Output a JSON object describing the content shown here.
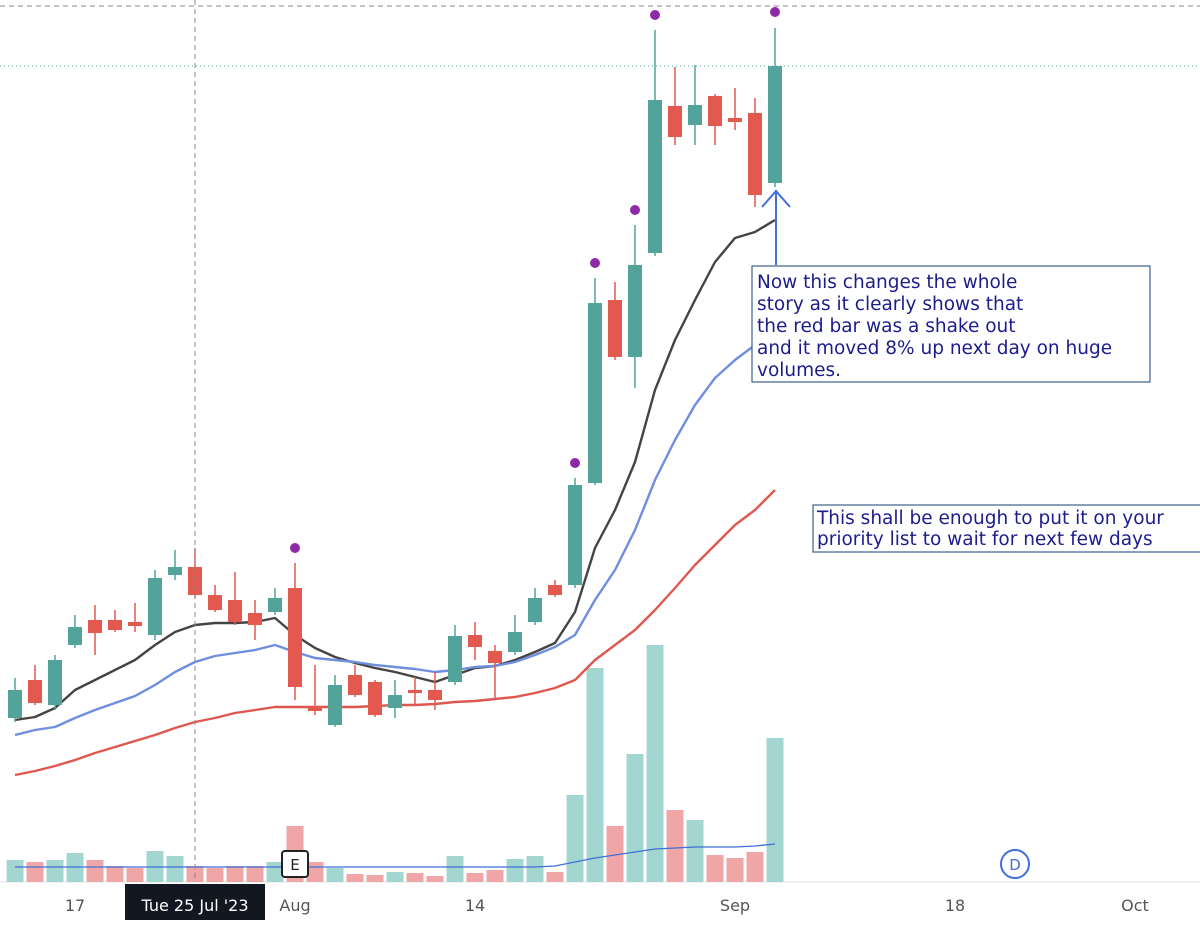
{
  "chart_data": {
    "type": "candlestick",
    "x": [
      0,
      1,
      2,
      3,
      4,
      5,
      6,
      7,
      8,
      9,
      10,
      11,
      12,
      13,
      14,
      15,
      16,
      17,
      18,
      19,
      20,
      21,
      22,
      23,
      24,
      25,
      26,
      27,
      28,
      29,
      30,
      31,
      32,
      33,
      34,
      35,
      36,
      37,
      38
    ],
    "open": [
      162,
      200,
      175,
      235,
      260,
      260,
      258,
      245,
      305,
      313,
      285,
      280,
      267,
      268,
      292,
      173,
      155,
      205,
      198,
      172,
      190,
      190,
      198,
      245,
      229,
      228,
      258,
      295,
      295,
      397,
      580,
      523,
      627,
      774,
      755,
      784,
      762,
      767,
      697
    ],
    "high": [
      202,
      215,
      225,
      265,
      275,
      270,
      277,
      310,
      330,
      332,
      295,
      308,
      280,
      292,
      317,
      215,
      205,
      215,
      200,
      200,
      203,
      208,
      255,
      258,
      235,
      265,
      292,
      300,
      402,
      602,
      598,
      655,
      850,
      813,
      815,
      786,
      792,
      782,
      852
    ],
    "low": [
      158,
      175,
      170,
      232,
      225,
      248,
      248,
      240,
      300,
      282,
      268,
      255,
      240,
      265,
      180,
      165,
      153,
      183,
      163,
      162,
      175,
      170,
      195,
      220,
      182,
      225,
      255,
      283,
      292,
      395,
      520,
      492,
      624,
      735,
      735,
      735,
      750,
      673,
      693
    ],
    "close": [
      190,
      177,
      220,
      253,
      247,
      250,
      254,
      302,
      313,
      285,
      270,
      258,
      255,
      282,
      193,
      169,
      195,
      185,
      165,
      185,
      187,
      180,
      244,
      233,
      217,
      248,
      282,
      285,
      395,
      577,
      523,
      615,
      780,
      743,
      775,
      754,
      758,
      685,
      814
    ],
    "up_color": "#52a49a",
    "down_color": "#e3584f",
    "ylim": [
      0,
      880
    ],
    "xlim": [
      -0.75,
      59.25
    ],
    "xticks": [
      {
        "value": 3,
        "label": "17"
      },
      {
        "value": 14,
        "label": "Aug"
      },
      {
        "value": 23,
        "label": "14"
      },
      {
        "value": 36,
        "label": "Sep"
      },
      {
        "value": 47,
        "label": "18"
      },
      {
        "value": 56,
        "label": "Oct"
      }
    ],
    "series": [
      {
        "name": null,
        "color": "#444444",
        "values": [
          160,
          163,
          172,
          190,
          200,
          210,
          220,
          235,
          248,
          255,
          257,
          257,
          258,
          262,
          245,
          232,
          223,
          217,
          212,
          208,
          203,
          198,
          205,
          212,
          214,
          220,
          228,
          237,
          268,
          332,
          370,
          418,
          490,
          540,
          580,
          618,
          642,
          648,
          660
        ]
      },
      {
        "name": null,
        "color": "#6e8ee0",
        "values": [
          145,
          150,
          153,
          162,
          170,
          177,
          184,
          195,
          208,
          218,
          224,
          227,
          230,
          235,
          228,
          222,
          220,
          218,
          215,
          213,
          211,
          208,
          210,
          213,
          214,
          218,
          225,
          233,
          245,
          280,
          310,
          350,
          400,
          440,
          475,
          502,
          520,
          535,
          540
        ]
      },
      {
        "name": null,
        "color": "#e0574f",
        "values": [
          105,
          109,
          114,
          120,
          127,
          133,
          139,
          145,
          152,
          158,
          162,
          167,
          170,
          173,
          173,
          173,
          173,
          173,
          174,
          175,
          175,
          176,
          178,
          179,
          181,
          183,
          187,
          192,
          200,
          220,
          235,
          250,
          270,
          292,
          315,
          335,
          355,
          370,
          390
        ]
      }
    ],
    "volume": {
      "values": [
        22,
        20,
        22,
        29,
        22,
        16,
        14,
        31,
        26,
        16,
        14,
        16,
        16,
        20,
        56,
        20,
        14,
        8,
        7,
        10,
        9,
        6,
        26,
        9,
        12,
        23,
        26,
        10,
        87,
        214,
        56,
        128,
        237,
        72,
        62,
        27,
        24,
        30,
        144
      ],
      "ylim": [
        0,
        882
      ],
      "up_color": "#a4d6d1",
      "down_color": "#f0a6a6",
      "ma_color": "#3f6fd8",
      "ma": [
        15,
        15,
        15,
        15,
        15,
        15,
        15,
        15,
        15,
        15,
        15,
        15,
        15,
        15,
        15,
        15,
        15,
        15,
        15,
        15,
        15,
        15,
        15,
        15,
        15,
        15,
        15,
        16,
        20,
        24,
        27,
        30,
        33,
        34,
        35,
        35,
        35,
        36,
        38
      ]
    },
    "signal_markers": {
      "color": "#8e2aa8",
      "x": [
        14,
        28,
        29,
        31,
        32,
        38
      ],
      "values": [
        332,
        417,
        617,
        670,
        865,
        868
      ]
    },
    "crosshair": {
      "x": 9,
      "y": 874,
      "label": "Tue 25 Jul '23"
    },
    "events": [
      {
        "x": 14,
        "label": "E"
      },
      {
        "x": 50,
        "label": "D"
      }
    ],
    "annotations": [
      {
        "lines": [
          "Now this changes the whole",
          "story as it clearly shows that",
          "the red bar was a shake out",
          "and it moved 8% up next day on huge",
          "volumes."
        ]
      },
      {
        "lines": [
          "This shall be enough to put it on your",
          "priority list to wait for next few days"
        ]
      }
    ]
  }
}
